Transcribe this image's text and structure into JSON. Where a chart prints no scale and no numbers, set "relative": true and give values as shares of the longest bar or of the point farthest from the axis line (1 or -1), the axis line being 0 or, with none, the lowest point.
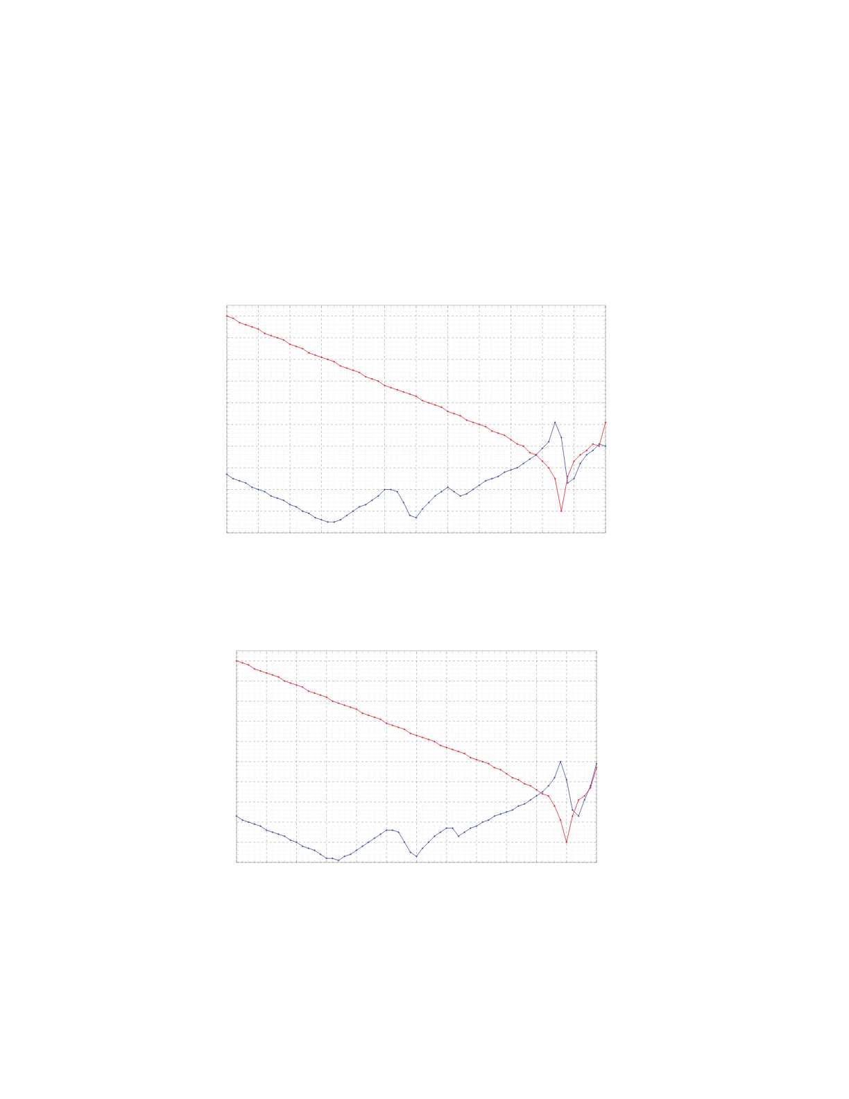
{
  "chart_data": [
    {
      "type": "line",
      "relative": true,
      "grid": true,
      "marker": "cross",
      "tick_labels": false,
      "categories": [
        null,
        null,
        null,
        null,
        null,
        null,
        null,
        null,
        null,
        null,
        null,
        null,
        null,
        null,
        null,
        null,
        null,
        null,
        null,
        null,
        null,
        null,
        null,
        null,
        null,
        null,
        null,
        null,
        null,
        null,
        null,
        null,
        null,
        null,
        null,
        null,
        null,
        null,
        null,
        null,
        null,
        null,
        null,
        null,
        null,
        null,
        null,
        null,
        null,
        null,
        null,
        null,
        null,
        null,
        null,
        null,
        null,
        null,
        null,
        null,
        null
      ],
      "series": [
        {
          "color": "#3a4aa0",
          "values": [
            0.27,
            0.25,
            0.24,
            0.23,
            0.21,
            0.2,
            0.19,
            0.17,
            0.16,
            0.15,
            0.13,
            0.12,
            0.1,
            0.09,
            0.07,
            0.06,
            0.05,
            0.05,
            0.06,
            0.08,
            0.1,
            0.12,
            0.13,
            0.15,
            0.17,
            0.2,
            0.2,
            0.19,
            0.14,
            0.08,
            0.07,
            0.11,
            0.14,
            0.17,
            0.19,
            0.21,
            0.19,
            0.17,
            0.18,
            0.2,
            0.22,
            0.24,
            0.25,
            0.26,
            0.28,
            0.29,
            0.3,
            0.32,
            0.34,
            0.36,
            0.39,
            0.42,
            0.51,
            0.44,
            0.23,
            0.25,
            0.32,
            0.36,
            0.38,
            0.41,
            0.4
          ]
        },
        {
          "color": "#e0202e",
          "values": [
            1.0,
            0.99,
            0.97,
            0.96,
            0.95,
            0.94,
            0.92,
            0.91,
            0.9,
            0.89,
            0.87,
            0.86,
            0.85,
            0.83,
            0.82,
            0.81,
            0.8,
            0.79,
            0.77,
            0.76,
            0.75,
            0.74,
            0.72,
            0.71,
            0.7,
            0.68,
            0.67,
            0.66,
            0.65,
            0.64,
            0.63,
            0.61,
            0.6,
            0.59,
            0.58,
            0.56,
            0.55,
            0.54,
            0.52,
            0.51,
            0.5,
            0.49,
            0.47,
            0.46,
            0.45,
            0.43,
            0.41,
            0.4,
            0.37,
            0.36,
            0.33,
            0.3,
            0.25,
            0.1,
            0.26,
            0.33,
            0.36,
            0.38,
            0.41,
            0.4,
            0.51
          ]
        }
      ]
    },
    {
      "type": "line",
      "relative": true,
      "grid": true,
      "marker": "cross",
      "tick_labels": false,
      "categories": [
        null,
        null,
        null,
        null,
        null,
        null,
        null,
        null,
        null,
        null,
        null,
        null,
        null,
        null,
        null,
        null,
        null,
        null,
        null,
        null,
        null,
        null,
        null,
        null,
        null,
        null,
        null,
        null,
        null,
        null,
        null,
        null,
        null,
        null,
        null,
        null,
        null,
        null,
        null,
        null,
        null,
        null,
        null,
        null,
        null,
        null,
        null,
        null,
        null,
        null,
        null,
        null,
        null,
        null,
        null,
        null,
        null,
        null,
        null,
        null,
        null
      ],
      "series": [
        {
          "color": "#3a4aa0",
          "values": [
            0.23,
            0.21,
            0.2,
            0.19,
            0.18,
            0.16,
            0.15,
            0.14,
            0.13,
            0.11,
            0.1,
            0.08,
            0.07,
            0.06,
            0.04,
            0.02,
            0.02,
            0.01,
            0.03,
            0.04,
            0.06,
            0.08,
            0.1,
            0.12,
            0.14,
            0.16,
            0.16,
            0.15,
            0.1,
            0.05,
            0.03,
            0.07,
            0.1,
            0.13,
            0.15,
            0.17,
            0.17,
            0.13,
            0.15,
            0.17,
            0.18,
            0.2,
            0.21,
            0.23,
            0.24,
            0.25,
            0.26,
            0.28,
            0.29,
            0.31,
            0.33,
            0.35,
            0.38,
            0.42,
            0.5,
            0.41,
            0.26,
            0.23,
            0.31,
            0.38,
            0.49
          ]
        },
        {
          "color": "#e0202e",
          "values": [
            1.0,
            0.99,
            0.98,
            0.96,
            0.95,
            0.94,
            0.93,
            0.92,
            0.9,
            0.89,
            0.88,
            0.87,
            0.85,
            0.84,
            0.83,
            0.82,
            0.8,
            0.79,
            0.78,
            0.77,
            0.76,
            0.74,
            0.73,
            0.72,
            0.71,
            0.69,
            0.68,
            0.67,
            0.66,
            0.64,
            0.63,
            0.62,
            0.61,
            0.6,
            0.58,
            0.57,
            0.56,
            0.55,
            0.54,
            0.52,
            0.51,
            0.5,
            0.49,
            0.47,
            0.46,
            0.44,
            0.42,
            0.41,
            0.39,
            0.38,
            0.36,
            0.34,
            0.33,
            0.28,
            0.21,
            0.1,
            0.23,
            0.31,
            0.33,
            0.37,
            0.47
          ]
        }
      ]
    }
  ]
}
